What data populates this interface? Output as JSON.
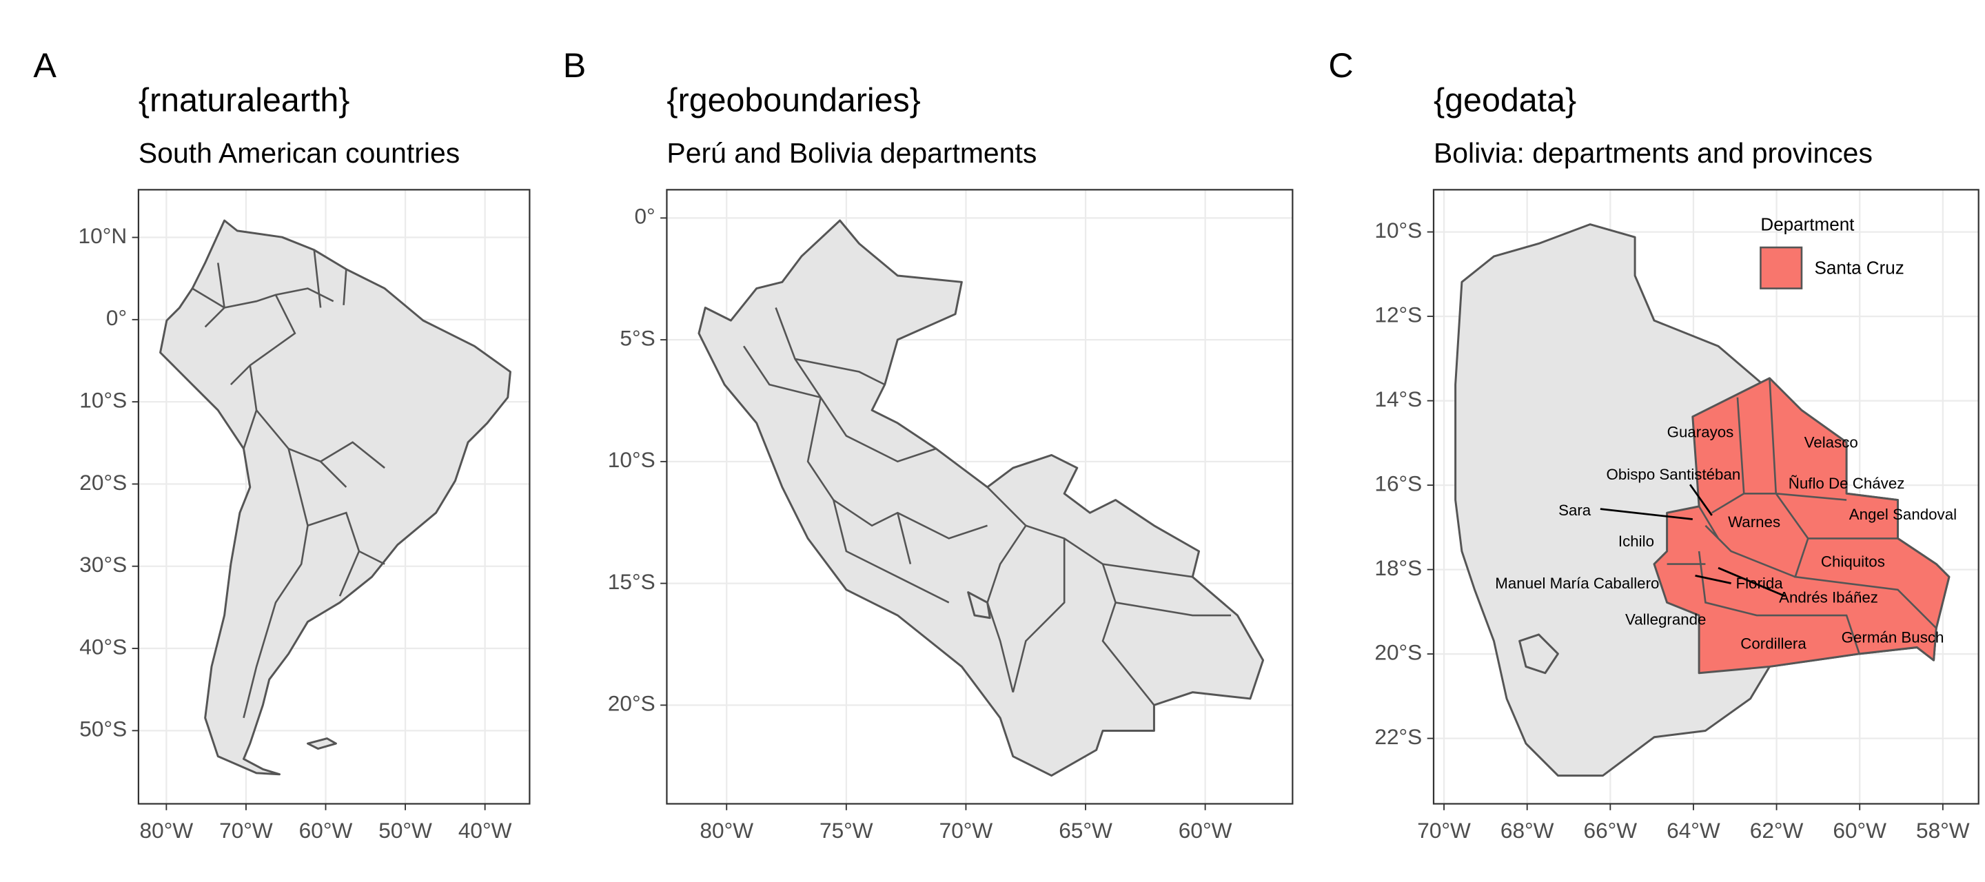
{
  "panels": [
    {
      "letter": "A",
      "title": "{rnaturalearth}",
      "subtitle": "South American countries",
      "xlim": [
        -83.5,
        -34.4
      ],
      "ylim": [
        -58.9,
        15.8
      ],
      "xticks": [
        {
          "value": -80,
          "label": "80°W"
        },
        {
          "value": -70,
          "label": "70°W"
        },
        {
          "value": -60,
          "label": "60°W"
        },
        {
          "value": -50,
          "label": "50°W"
        },
        {
          "value": -40,
          "label": "40°W"
        }
      ],
      "yticks": [
        {
          "value": 10,
          "label": "10°N"
        },
        {
          "value": 0,
          "label": "0°"
        },
        {
          "value": -10,
          "label": "10°S"
        },
        {
          "value": -20,
          "label": "20°S"
        },
        {
          "value": -30,
          "label": "30°S"
        },
        {
          "value": -40,
          "label": "40°S"
        },
        {
          "value": -50,
          "label": "50°S"
        }
      ]
    },
    {
      "letter": "B",
      "title": "{rgeoboundaries}",
      "subtitle": "Perú and Bolivia departments",
      "xlim": [
        -82.5,
        -56.35
      ],
      "ylim": [
        -24.05,
        1.16
      ],
      "xticks": [
        {
          "value": -80,
          "label": "80°W"
        },
        {
          "value": -75,
          "label": "75°W"
        },
        {
          "value": -70,
          "label": "70°W"
        },
        {
          "value": -65,
          "label": "65°W"
        },
        {
          "value": -60,
          "label": "60°W"
        }
      ],
      "yticks": [
        {
          "value": 0,
          "label": "0°"
        },
        {
          "value": -5,
          "label": "5°S"
        },
        {
          "value": -10,
          "label": "10°S"
        },
        {
          "value": -15,
          "label": "15°S"
        },
        {
          "value": -20,
          "label": "20°S"
        }
      ]
    },
    {
      "letter": "C",
      "title": "{geodata}",
      "subtitle": "Bolivia: departments and provinces",
      "xlim": [
        -70.25,
        -57.14
      ],
      "ylim": [
        -23.55,
        -9.0
      ],
      "xticks": [
        {
          "value": -70,
          "label": "70°W"
        },
        {
          "value": -68,
          "label": "68°W"
        },
        {
          "value": -66,
          "label": "66°W"
        },
        {
          "value": -64,
          "label": "64°W"
        },
        {
          "value": -62,
          "label": "62°W"
        },
        {
          "value": -60,
          "label": "60°W"
        },
        {
          "value": -58,
          "label": "58°W"
        }
      ],
      "yticks": [
        {
          "value": -10,
          "label": "10°S"
        },
        {
          "value": -12,
          "label": "12°S"
        },
        {
          "value": -14,
          "label": "14°S"
        },
        {
          "value": -16,
          "label": "16°S"
        },
        {
          "value": -18,
          "label": "18°S"
        },
        {
          "value": -20,
          "label": "20°S"
        },
        {
          "value": -22,
          "label": "22°S"
        }
      ],
      "legend": {
        "title": "Department",
        "items": [
          "Santa Cruz"
        ]
      },
      "labels": [
        "Guarayos",
        "Velasco",
        "Obispo Santistéban",
        "Ñuflo De Chávez",
        "Sara",
        "Warnes",
        "Angel Sandoval",
        "Ichilo",
        "Chiquitos",
        "Manuel María Caballero",
        "Florida",
        "Andrés Ibáñez",
        "Vallegrande",
        "Germán Busch",
        "Cordillera"
      ]
    }
  ]
}
